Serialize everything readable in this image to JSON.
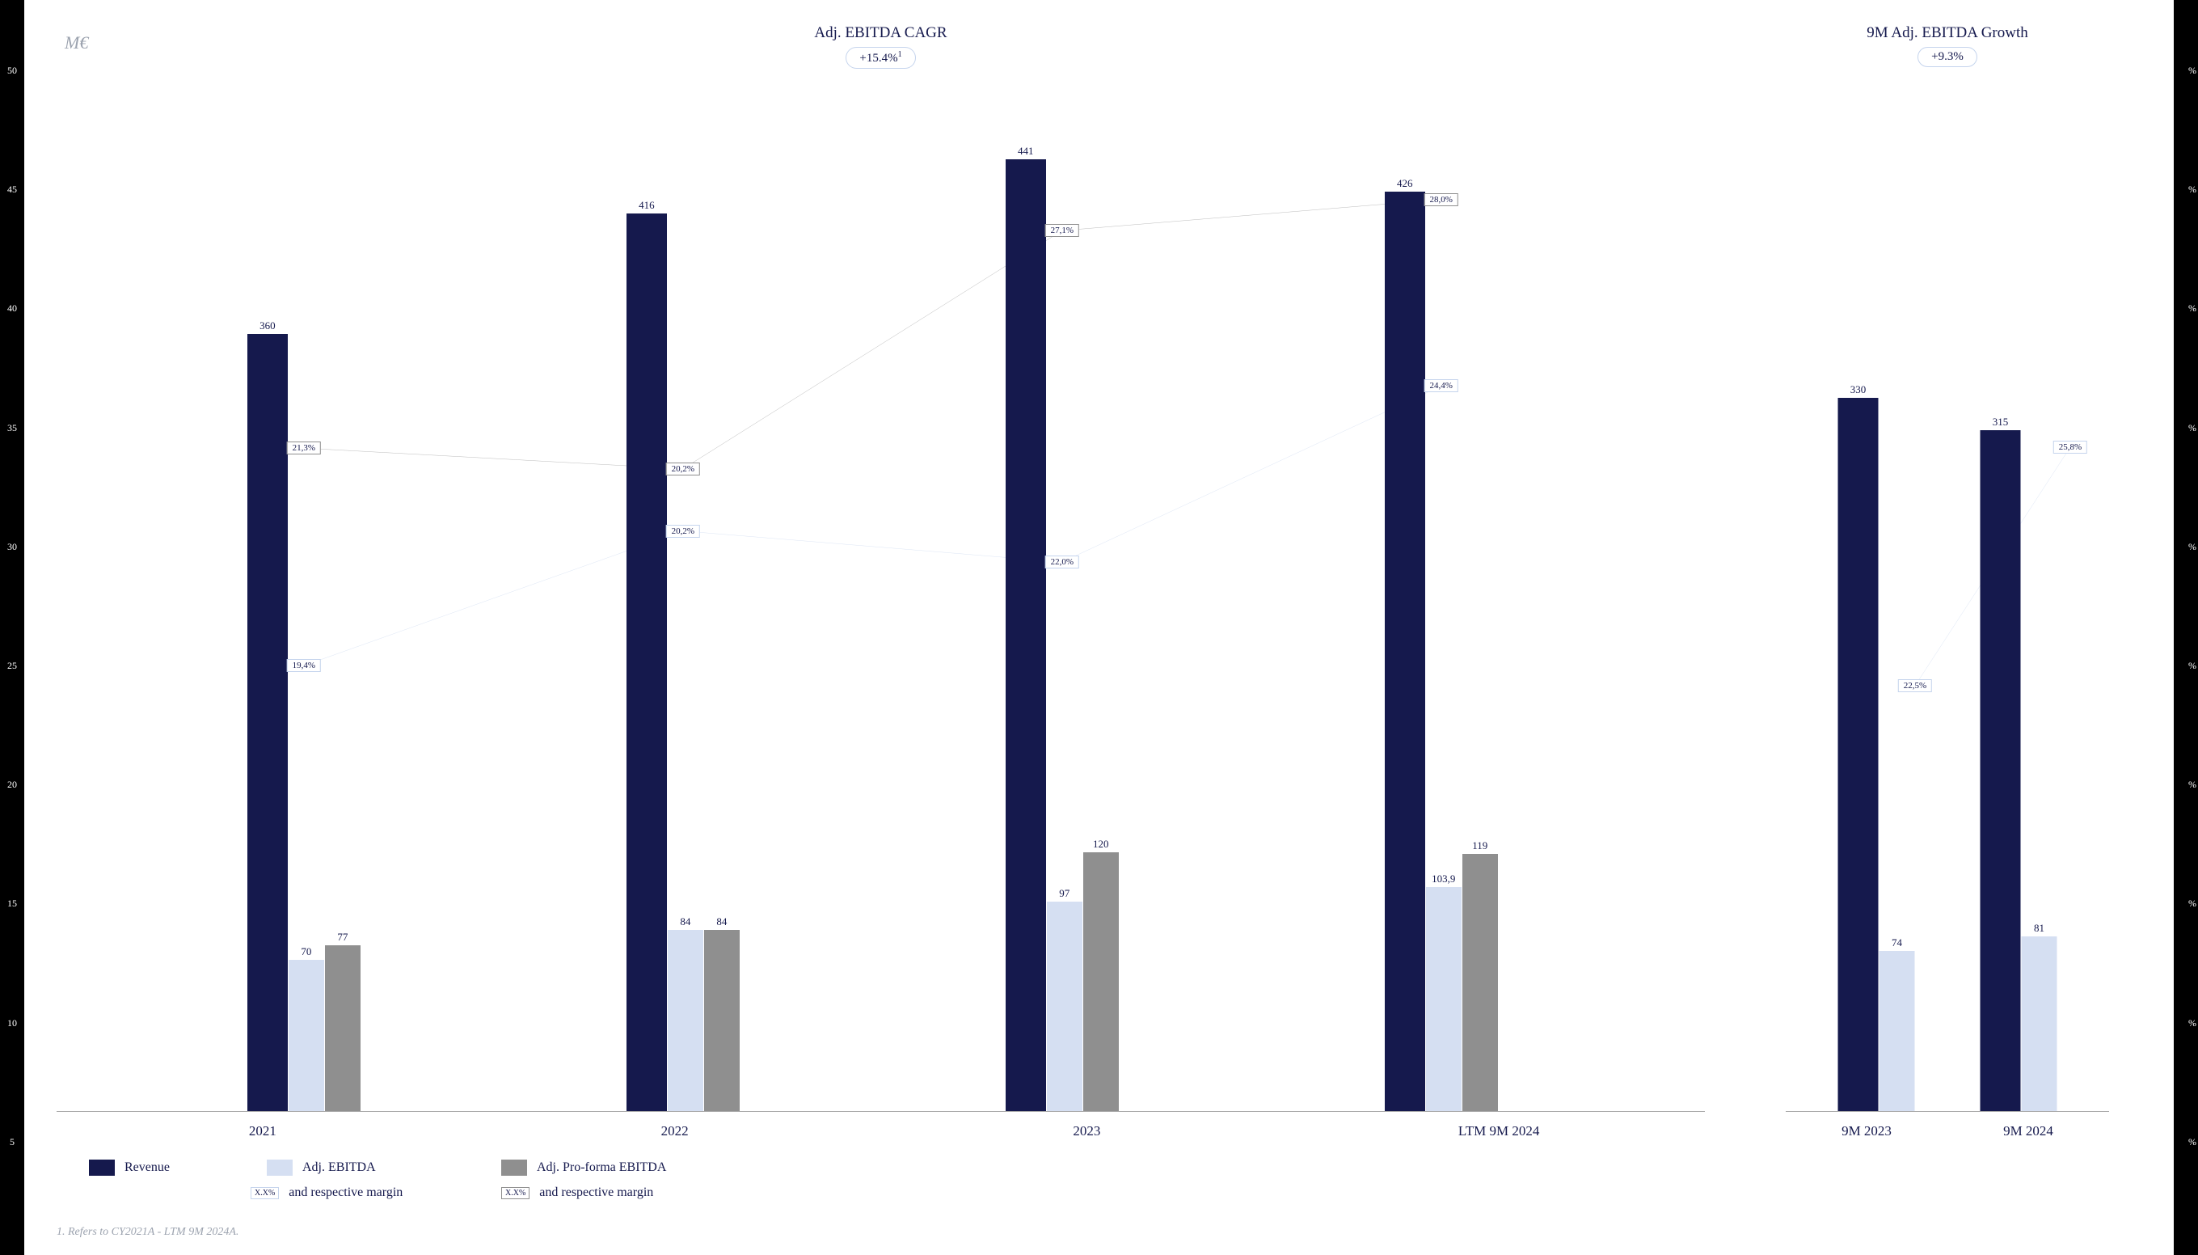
{
  "unit_label": "M€",
  "left_axis_ticks": [
    "50",
    "45",
    "40",
    "35",
    "30",
    "25",
    "20",
    "15",
    "10",
    "5"
  ],
  "right_axis_ticks": [
    "%",
    "%",
    "%",
    "%",
    "%",
    "%",
    "%",
    "%",
    "%",
    "%"
  ],
  "colors": {
    "revenue": "#15194d",
    "ebitda": "#d5dff2",
    "proforma": "#8f8f8f",
    "ebitda_line": "#c5d4ed",
    "proforma_line": "#8f8f8f",
    "text": "#15194d"
  },
  "left_chart": {
    "title": "Adj. EBITDA CAGR",
    "badge": "+15.4%",
    "badge_sup": "1",
    "y_max": 480,
    "bar_width_revenue": 50,
    "bar_width_other": 44,
    "categories": [
      "2021",
      "2022",
      "2023",
      "LTM 9M 2024"
    ],
    "x_positions": [
      15,
      38,
      61,
      84
    ],
    "series": {
      "revenue": [
        360,
        416,
        441,
        426
      ],
      "ebitda": [
        70,
        84,
        97,
        103.9
      ],
      "proforma": [
        77,
        84,
        120,
        119
      ]
    },
    "ebitda_labels": [
      "70",
      "84",
      "97",
      "103,9"
    ],
    "proforma_labels": [
      "77",
      "84",
      "120",
      "119"
    ],
    "ebitda_margin": {
      "values": [
        "19,4%",
        "20,2%",
        "22,0%",
        "24,4%"
      ],
      "y": [
        57,
        44,
        47,
        30
      ]
    },
    "proforma_margin": {
      "values": [
        "21,3%",
        "20,2%",
        "27,1%",
        "28,0%"
      ],
      "y": [
        36,
        38,
        15,
        12
      ]
    }
  },
  "right_chart": {
    "title": "9M Adj. EBITDA Growth",
    "badge": "+9.3%",
    "y_max": 480,
    "bar_width_revenue": 50,
    "bar_width_other": 44,
    "categories": [
      "9M 2023",
      "9M 2024"
    ],
    "x_positions": [
      28,
      72
    ],
    "series": {
      "revenue": [
        330,
        315
      ],
      "ebitda": [
        74,
        81
      ]
    },
    "ebitda_labels": [
      "74",
      "81"
    ],
    "ebitda_margin": {
      "values": [
        "22,5%",
        "25,8%"
      ],
      "y": [
        59,
        36
      ],
      "x": [
        40,
        88
      ]
    }
  },
  "legend": {
    "row1": [
      {
        "type": "swatch",
        "color": "#15194d",
        "label": "Revenue"
      },
      {
        "type": "swatch",
        "color": "#d5dff2",
        "label": "Adj. EBITDA"
      },
      {
        "type": "swatch",
        "color": "#8f8f8f",
        "label": "Adj. Pro-forma EBITDA"
      }
    ],
    "row2": [
      {
        "type": "box",
        "border": "#c5d4ed",
        "text": "X.X%",
        "label": "and respective margin"
      },
      {
        "type": "box",
        "border": "#8f8f8f",
        "text": "X.X%",
        "label": "and respective margin"
      }
    ]
  },
  "footnote": "1.  Refers to CY2021A - LTM 9M 2024A."
}
